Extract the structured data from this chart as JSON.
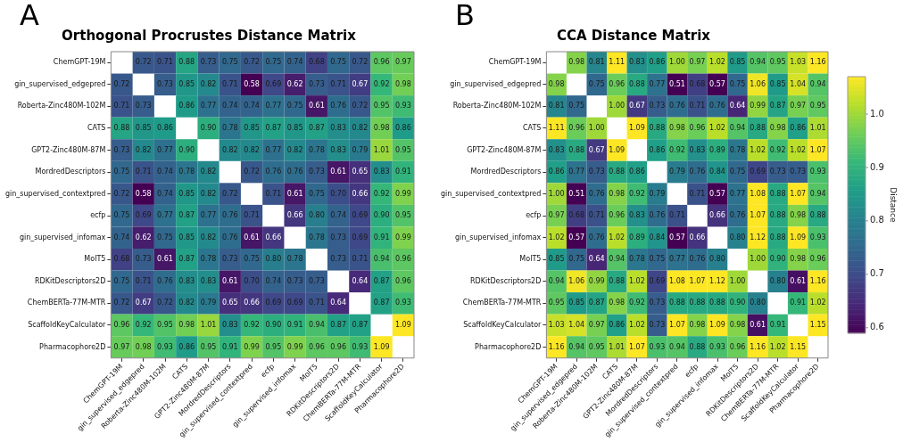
{
  "chart_data": [
    {
      "type": "heatmap",
      "title": "Orthogonal Procrustes Distance Matrix",
      "annotations": [
        "A"
      ],
      "data_labels": true,
      "categories": [
        "ChemGPT-19M",
        "gin_supervised_edgepred",
        "Roberta-Zinc480M-102M",
        "CATS",
        "GPT2-Zinc480M-87M",
        "MordredDescriptors",
        "gin_supervised_contextpred",
        "ecfp",
        "gin_supervised_infomax",
        "MolT5",
        "RDKitDescriptors2D",
        "ChemBERTa-77M-MTR",
        "ScaffoldKeyCalculator",
        "Pharmacophore2D"
      ],
      "y_categories": [
        "ChemGPT-19M",
        "gin_supervised_edgepred",
        "Roberta-Zinc480M-102M",
        "CATS",
        "GPT2-Zinc480M-87M",
        "MordredDescriptors",
        "gin_supervised_contextpred",
        "ecfp",
        "gin_supervised_infomax",
        "MolT5",
        "RDKitDescriptors2D",
        "ChemBERTa-77M-MTR",
        "ScaffoldKeyCalculator",
        "Pharmacophore2D"
      ],
      "cells": [
        [
          null,
          0.72,
          0.71,
          0.88,
          0.73,
          0.75,
          0.72,
          0.75,
          0.74,
          0.68,
          0.75,
          0.72,
          0.96,
          0.97
        ],
        [
          0.72,
          null,
          0.73,
          0.85,
          0.82,
          0.71,
          0.58,
          0.69,
          0.62,
          0.73,
          0.71,
          0.67,
          0.92,
          0.98
        ],
        [
          0.71,
          0.73,
          null,
          0.86,
          0.77,
          0.74,
          0.74,
          0.77,
          0.75,
          0.61,
          0.76,
          0.72,
          0.95,
          0.93
        ],
        [
          0.88,
          0.85,
          0.86,
          null,
          0.9,
          0.78,
          0.85,
          0.87,
          0.85,
          0.87,
          0.83,
          0.82,
          0.98,
          0.86
        ],
        [
          0.73,
          0.82,
          0.77,
          0.9,
          null,
          0.82,
          0.82,
          0.77,
          0.82,
          0.78,
          0.83,
          0.79,
          1.01,
          0.95
        ],
        [
          0.75,
          0.71,
          0.74,
          0.78,
          0.82,
          null,
          0.72,
          0.76,
          0.76,
          0.73,
          0.61,
          0.65,
          0.83,
          0.91
        ],
        [
          0.72,
          0.58,
          0.74,
          0.85,
          0.82,
          0.72,
          null,
          0.71,
          0.61,
          0.75,
          0.7,
          0.66,
          0.92,
          0.99
        ],
        [
          0.75,
          0.69,
          0.77,
          0.87,
          0.77,
          0.76,
          0.71,
          null,
          0.66,
          0.8,
          0.74,
          0.69,
          0.9,
          0.95
        ],
        [
          0.74,
          0.62,
          0.75,
          0.85,
          0.82,
          0.76,
          0.61,
          0.66,
          null,
          0.78,
          0.73,
          0.69,
          0.91,
          0.99
        ],
        [
          0.68,
          0.73,
          0.61,
          0.87,
          0.78,
          0.73,
          0.75,
          0.8,
          0.78,
          null,
          0.73,
          0.71,
          0.94,
          0.96
        ],
        [
          0.75,
          0.71,
          0.76,
          0.83,
          0.83,
          0.61,
          0.7,
          0.74,
          0.73,
          0.73,
          null,
          0.64,
          0.87,
          0.96
        ],
        [
          0.72,
          0.67,
          0.72,
          0.82,
          0.79,
          0.65,
          0.66,
          0.69,
          0.69,
          0.71,
          0.64,
          null,
          0.87,
          0.93
        ],
        [
          0.96,
          0.92,
          0.95,
          0.98,
          1.01,
          0.83,
          0.92,
          0.9,
          0.91,
          0.94,
          0.87,
          0.87,
          null,
          1.09
        ],
        [
          0.97,
          0.98,
          0.93,
          0.86,
          0.95,
          0.91,
          0.99,
          0.95,
          0.99,
          0.96,
          0.96,
          0.93,
          1.09,
          null
        ]
      ],
      "cell_labels": [
        [
          null,
          "0.72",
          "0.71",
          "0.88",
          "0.73",
          "0.75",
          "0.72",
          "0.75",
          "0.74",
          "0.68",
          "0.75",
          "0.72",
          "0.96",
          "0.97"
        ],
        [
          "0.72",
          null,
          "0.73",
          "0.85",
          "0.82",
          "0.71",
          "0.58",
          "0.69",
          "0.62",
          "0.73",
          "0.71",
          "0.67",
          "0.92",
          "0.98"
        ],
        [
          "0.71",
          "0.73",
          null,
          "0.86",
          "0.77",
          "0.74",
          "0.74",
          "0.77",
          "0.75",
          "0.61",
          "0.76",
          "0.72",
          "0.95",
          "0.93"
        ],
        [
          "0.88",
          "0.85",
          "0.86",
          null,
          "0.90",
          "0.78",
          "0.85",
          "0.87",
          "0.85",
          "0.87",
          "0.83",
          "0.82",
          "0.98",
          "0.86"
        ],
        [
          "0.73",
          "0.82",
          "0.77",
          "0.90",
          null,
          "0.82",
          "0.82",
          "0.77",
          "0.82",
          "0.78",
          "0.83",
          "0.79",
          "1.01",
          "0.95"
        ],
        [
          "0.75",
          "0.71",
          "0.74",
          "0.78",
          "0.82",
          null,
          "0.72",
          "0.76",
          "0.76",
          "0.73",
          "0.61",
          "0.65",
          "0.83",
          "0.91"
        ],
        [
          "0.72",
          "0.58",
          "0.74",
          "0.85",
          "0.82",
          "0.72",
          null,
          "0.71",
          "0.61",
          "0.75",
          "0.70",
          "0.66",
          "0.92",
          "0.99"
        ],
        [
          "0.75",
          "0.69",
          "0.77",
          "0.87",
          "0.77",
          "0.76",
          "0.71",
          null,
          "0.66",
          "0.80",
          "0.74",
          "0.69",
          "0.90",
          "0.95"
        ],
        [
          "0.74",
          "0.62",
          "0.75",
          "0.85",
          "0.82",
          "0.76",
          "0.61",
          "0.66",
          null,
          "0.78",
          "0.73",
          "0.69",
          "0.91",
          "0.99"
        ],
        [
          "0.68",
          "0.73",
          "0.61",
          "0.87",
          "0.78",
          "0.73",
          "0.75",
          "0.80",
          "0.78",
          null,
          "0.73",
          "0.71",
          "0.94",
          "0.96"
        ],
        [
          "0.75",
          "0.71",
          "0.76",
          "0.83",
          "0.83",
          "0.61",
          "0.70",
          "0.74",
          "0.73",
          "0.73",
          null,
          "0.64",
          "0.87",
          "0.96"
        ],
        [
          "0.72",
          "0.67",
          "0.72",
          "0.82",
          "0.79",
          "0.65",
          "0.66",
          "0.69",
          "0.69",
          "0.71",
          "0.64",
          null,
          "0.87",
          "0.93"
        ],
        [
          "0.96",
          "0.92",
          "0.95",
          "0.98",
          "1.01",
          "0.83",
          "0.92",
          "0.90",
          "0.91",
          "0.94",
          "0.87",
          "0.87",
          null,
          "1.09"
        ],
        [
          "0.97",
          "0.98",
          "0.93",
          "0.86",
          "0.95",
          "0.91",
          "0.99",
          "0.95",
          "0.99",
          "0.96",
          "0.96",
          "0.93",
          "1.09",
          null
        ]
      ]
    },
    {
      "type": "heatmap",
      "title": "CCA Distance Matrix",
      "annotations": [
        "B"
      ],
      "data_labels": true,
      "clabel": "Distance",
      "clim": [
        0.59,
        1.07
      ],
      "cticks": [
        0.6,
        0.7,
        0.8,
        0.9,
        {
          "value": 1,
          "label": "1.0"
        }
      ],
      "categories": [
        "ChemGPT-19M",
        "gin_supervised_edgepred",
        "Roberta-Zinc480M-102M",
        "CATS",
        "GPT2-Zinc480M-87M",
        "MordredDescriptors",
        "gin_supervised_contextpred",
        "ecfp",
        "gin_supervised_infomax",
        "MolT5",
        "RDKitDescriptors2D",
        "ChemBERTa-77M-MTR",
        "ScaffoldKeyCalculator",
        "Pharmacophore2D"
      ],
      "y_categories": [
        "ChemGPT-19M",
        "gin_supervised_edgepred",
        "Roberta-Zinc480M-102M",
        "CATS",
        "GPT2-Zinc480M-87M",
        "MordredDescriptors",
        "gin_supervised_contextpred",
        "ecfp",
        "gin_supervised_infomax",
        "MolT5",
        "RDKitDescriptors2D",
        "ChemBERTa-77M-MTR",
        "ScaffoldKeyCalculator",
        "Pharmacophore2D"
      ],
      "cells": [
        [
          null,
          0.98,
          0.81,
          1.11,
          0.83,
          0.86,
          1.0,
          0.97,
          1.02,
          0.85,
          0.94,
          0.95,
          1.03,
          1.16
        ],
        [
          0.98,
          null,
          0.75,
          0.96,
          0.88,
          0.77,
          0.51,
          0.68,
          0.57,
          0.75,
          1.06,
          0.85,
          1.04,
          0.94
        ],
        [
          0.81,
          0.75,
          null,
          1.0,
          0.67,
          0.73,
          0.76,
          0.71,
          0.76,
          0.64,
          0.99,
          0.87,
          0.97,
          0.95
        ],
        [
          1.11,
          0.96,
          1.0,
          null,
          1.09,
          0.88,
          0.98,
          0.96,
          1.02,
          0.94,
          0.88,
          0.98,
          0.86,
          1.01
        ],
        [
          0.83,
          0.88,
          0.67,
          1.09,
          null,
          0.86,
          0.92,
          0.83,
          0.89,
          0.78,
          1.02,
          0.92,
          1.02,
          1.07
        ],
        [
          0.86,
          0.77,
          0.73,
          0.88,
          0.86,
          null,
          0.79,
          0.76,
          0.84,
          0.75,
          0.69,
          0.73,
          0.73,
          0.93
        ],
        [
          1.0,
          0.51,
          0.76,
          0.98,
          0.92,
          0.79,
          null,
          0.71,
          0.57,
          0.77,
          1.08,
          0.88,
          1.07,
          0.94
        ],
        [
          0.97,
          0.68,
          0.71,
          0.96,
          0.83,
          0.76,
          0.71,
          null,
          0.66,
          0.76,
          1.07,
          0.88,
          0.98,
          0.88
        ],
        [
          1.02,
          0.57,
          0.76,
          1.02,
          0.89,
          0.84,
          0.57,
          0.66,
          null,
          0.8,
          1.12,
          0.88,
          1.09,
          0.93
        ],
        [
          0.85,
          0.75,
          0.64,
          0.94,
          0.78,
          0.75,
          0.77,
          0.76,
          0.8,
          null,
          1.0,
          0.9,
          0.98,
          0.96
        ],
        [
          0.94,
          1.06,
          0.99,
          0.88,
          1.02,
          0.69,
          1.08,
          1.07,
          1.12,
          1.0,
          null,
          0.8,
          0.61,
          1.16
        ],
        [
          0.95,
          0.85,
          0.87,
          0.98,
          0.92,
          0.73,
          0.88,
          0.88,
          0.88,
          0.9,
          0.8,
          null,
          0.91,
          1.02
        ],
        [
          1.03,
          1.04,
          0.97,
          0.86,
          1.02,
          0.73,
          1.07,
          0.98,
          1.09,
          0.98,
          0.61,
          0.91,
          null,
          1.15
        ],
        [
          1.16,
          0.94,
          0.95,
          1.01,
          1.07,
          0.93,
          0.94,
          0.88,
          0.93,
          0.96,
          1.16,
          1.02,
          1.15,
          null
        ]
      ],
      "cell_labels": [
        [
          null,
          "0.98",
          "0.81",
          "1.11",
          "0.83",
          "0.86",
          "1.00",
          "0.97",
          "1.02",
          "0.85",
          "0.94",
          "0.95",
          "1.03",
          "1.16"
        ],
        [
          "0.98",
          null,
          "0.75",
          "0.96",
          "0.88",
          "0.77",
          "0.51",
          "0.68",
          "0.57",
          "0.75",
          "1.06",
          "0.85",
          "1.04",
          "0.94"
        ],
        [
          "0.81",
          "0.75",
          null,
          "1.00",
          "0.67",
          "0.73",
          "0.76",
          "0.71",
          "0.76",
          "0.64",
          "0.99",
          "0.87",
          "0.97",
          "0.95"
        ],
        [
          "1.11",
          "0.96",
          "1.00",
          null,
          "1.09",
          "0.88",
          "0.98",
          "0.96",
          "1.02",
          "0.94",
          "0.88",
          "0.98",
          "0.86",
          "1.01"
        ],
        [
          "0.83",
          "0.88",
          "0.67",
          "1.09",
          null,
          "0.86",
          "0.92",
          "0.83",
          "0.89",
          "0.78",
          "1.02",
          "0.92",
          "1.02",
          "1.07"
        ],
        [
          "0.86",
          "0.77",
          "0.73",
          "0.88",
          "0.86",
          null,
          "0.79",
          "0.76",
          "0.84",
          "0.75",
          "0.69",
          "0.73",
          "0.73",
          "0.93"
        ],
        [
          "1.00",
          "0.51",
          "0.76",
          "0.98",
          "0.92",
          "0.79",
          null,
          "0.71",
          "0.57",
          "0.77",
          "1.08",
          "0.88",
          "1.07",
          "0.94"
        ],
        [
          "0.97",
          "0.68",
          "0.71",
          "0.96",
          "0.83",
          "0.76",
          "0.71",
          null,
          "0.66",
          "0.76",
          "1.07",
          "0.88",
          "0.98",
          "0.88"
        ],
        [
          "1.02",
          "0.57",
          "0.76",
          "1.02",
          "0.89",
          "0.84",
          "0.57",
          "0.66",
          null,
          "0.80",
          "1.12",
          "0.88",
          "1.09",
          "0.93"
        ],
        [
          "0.85",
          "0.75",
          "0.64",
          "0.94",
          "0.78",
          "0.75",
          "0.77",
          "0.76",
          "0.80",
          null,
          "1.00",
          "0.90",
          "0.98",
          "0.96"
        ],
        [
          "0.94",
          "1.06",
          "0.99",
          "0.88",
          "1.02",
          "0.69",
          "1.08",
          "1.07",
          "1.12",
          "1.00",
          null,
          "0.80",
          "0.61",
          "1.16"
        ],
        [
          "0.95",
          "0.85",
          "0.87",
          "0.98",
          "0.92",
          "0.73",
          "0.88",
          "0.88",
          "0.88",
          "0.90",
          "0.80",
          null,
          "0.91",
          "1.02"
        ],
        [
          "1.03",
          "1.04",
          "0.97",
          "0.86",
          "1.02",
          "0.73",
          "1.07",
          "0.98",
          "1.09",
          "0.98",
          "0.61",
          "0.91",
          null,
          "1.15"
        ],
        [
          "1.16",
          "0.94",
          "0.95",
          "1.01",
          "1.07",
          "0.93",
          "0.94",
          "0.88",
          "0.93",
          "0.96",
          "1.16",
          "1.02",
          "1.15",
          null
        ]
      ]
    }
  ]
}
